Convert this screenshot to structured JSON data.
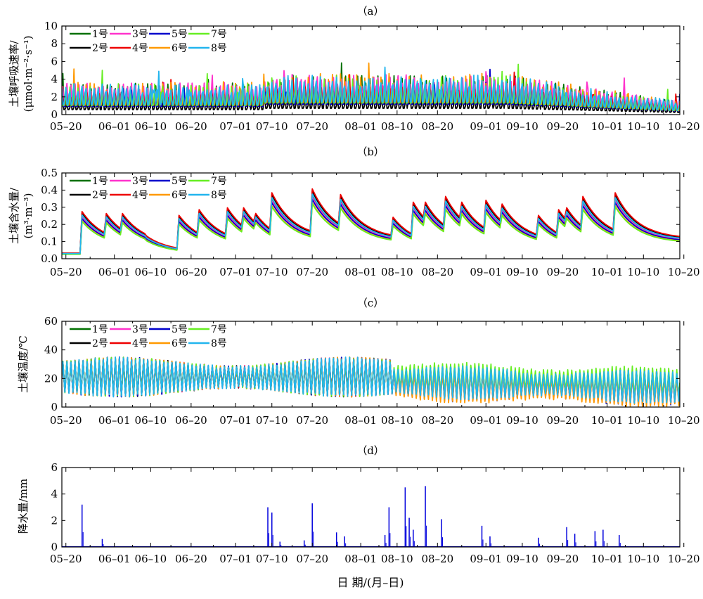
{
  "figure": {
    "xlabel": "日 期/(月–日)",
    "date_ticks": [
      "05–20",
      "06–01",
      "06–10",
      "06–20",
      "07–01",
      "07–10",
      "07–20",
      "08–01",
      "08–10",
      "08–20",
      "09–01",
      "09–10",
      "09–20",
      "10–01",
      "10–10",
      "10–20"
    ]
  },
  "chart_data": [
    {
      "id": "a",
      "tag": "（a）",
      "type": "line",
      "ylabel_lines": [
        "土壤呼吸速率/",
        "(μmol·m⁻²·s⁻¹)"
      ],
      "ylim": [
        0,
        10
      ],
      "yticks": [
        "0",
        "2",
        "4",
        "6",
        "8",
        "10"
      ],
      "xlim": [
        "05-20",
        "10-20"
      ],
      "grid": false,
      "legend": {
        "placement": "top-left",
        "columns": 4,
        "entries": [
          "1号",
          "3号",
          "5号",
          "7号",
          "2号",
          "4号",
          "6号",
          "8号"
        ]
      },
      "series": [
        {
          "name": "1号",
          "color": "#007000",
          "summary": "diurnal oscillation, mostly 0.5–3.5, peak about 4 in early Aug"
        },
        {
          "name": "2号",
          "color": "#000000",
          "summary": "diurnal oscillation, lowest of all, mostly 0.3–2.5"
        },
        {
          "name": "3号",
          "color": "#ff33cc",
          "summary": "diurnal oscillation, peaks about 5.5 in early Jun, about 6.6 on 09-01"
        },
        {
          "name": "4号",
          "color": "#ee0000",
          "summary": "diurnal oscillation, mostly 0.8–4"
        },
        {
          "name": "5号",
          "color": "#0000cc",
          "summary": "diurnal oscillation, mostly 0.8–4"
        },
        {
          "name": "6号",
          "color": "#ff9900",
          "summary": "diurnal oscillation, peak about 6.7 on 08-31"
        },
        {
          "name": "7号",
          "color": "#66ee22",
          "summary": "diurnal oscillation, peaks about 6.4 late Aug"
        },
        {
          "name": "8号",
          "color": "#22b5ee",
          "summary": "diurnal oscillation, mostly 1–4.5, declining to about 0.5 by 10-20"
        }
      ]
    },
    {
      "id": "b",
      "tag": "（b）",
      "type": "line",
      "ylabel_lines": [
        "土壤含水量/",
        "(m³·m⁻³)"
      ],
      "ylim": [
        0,
        0.5
      ],
      "yticks": [
        "0.0",
        "0.1",
        "0.2",
        "0.3",
        "0.4",
        "0.5"
      ],
      "xlim": [
        "05-20",
        "10-20"
      ],
      "grid": false,
      "legend": {
        "placement": "top-left",
        "columns": 4,
        "entries": [
          "1号",
          "3号",
          "5号",
          "7号",
          "2号",
          "4号",
          "6号",
          "8号"
        ]
      },
      "event_dates": [
        "05-24",
        "05-30",
        "06-03",
        "06-09",
        "06-17",
        "06-22",
        "06-29",
        "07-03",
        "07-06",
        "07-10",
        "07-20",
        "07-27",
        "08-09",
        "08-14",
        "08-17",
        "08-22",
        "08-26",
        "09-01",
        "09-05",
        "09-14",
        "09-19",
        "09-21",
        "09-25",
        "10-03"
      ],
      "event_peaks": [
        0.25,
        0.24,
        0.24,
        0.12,
        0.23,
        0.26,
        0.27,
        0.27,
        0.24,
        0.35,
        0.37,
        0.34,
        0.22,
        0.3,
        0.3,
        0.33,
        0.3,
        0.31,
        0.29,
        0.23,
        0.26,
        0.27,
        0.33,
        0.35
      ],
      "series": [
        {
          "name": "1号",
          "color": "#007000"
        },
        {
          "name": "2号",
          "color": "#000000"
        },
        {
          "name": "3号",
          "color": "#ff33cc"
        },
        {
          "name": "4号",
          "color": "#ee0000"
        },
        {
          "name": "5号",
          "color": "#0000cc"
        },
        {
          "name": "6号",
          "color": "#ff9900"
        },
        {
          "name": "7号",
          "color": "#66ee22"
        },
        {
          "name": "8号",
          "color": "#22b5ee"
        }
      ]
    },
    {
      "id": "c",
      "tag": "（c）",
      "type": "line",
      "ylabel_lines": [
        "土壤温度/℃"
      ],
      "ylim": [
        0,
        60
      ],
      "yticks": [
        "0",
        "20",
        "40",
        "60"
      ],
      "xlim": [
        "05-20",
        "10-20"
      ],
      "grid": false,
      "legend": {
        "placement": "top-left",
        "columns": 4,
        "entries": [
          "1号",
          "3号",
          "5号",
          "7号",
          "2号",
          "4号",
          "6号",
          "8号"
        ]
      },
      "series": [
        {
          "name": "1号",
          "color": "#007000"
        },
        {
          "name": "2号",
          "color": "#000000"
        },
        {
          "name": "3号",
          "color": "#ff33cc"
        },
        {
          "name": "4号",
          "color": "#ee0000"
        },
        {
          "name": "5号",
          "color": "#0000cc"
        },
        {
          "name": "6号",
          "color": "#ff9900"
        },
        {
          "name": "7号",
          "color": "#66ee22",
          "summary": "max about 44 on 08-08"
        },
        {
          "name": "8号",
          "color": "#22b5ee",
          "summary": "daily cycle about 10–36 until 08-10, then 8–33"
        }
      ]
    },
    {
      "id": "d",
      "tag": "（d）",
      "type": "bar",
      "ylabel_lines": [
        "降水量/mm"
      ],
      "ylim": [
        0,
        6
      ],
      "yticks": [
        "0",
        "2",
        "4",
        "6"
      ],
      "xlim": [
        "05-20",
        "10-20"
      ],
      "grid": false,
      "color": "#0000dd",
      "x": [
        "05-24",
        "05-29",
        "07-09",
        "07-10",
        "07-12",
        "07-18",
        "07-20",
        "07-26",
        "07-28",
        "08-07",
        "08-08",
        "08-12",
        "08-13",
        "08-14",
        "08-17",
        "08-21",
        "08-31",
        "09-02",
        "09-14",
        "09-21",
        "09-23",
        "09-28",
        "09-30",
        "10-04"
      ],
      "values": [
        3.2,
        0.6,
        3.0,
        2.6,
        0.4,
        0.5,
        3.3,
        1.1,
        0.8,
        0.9,
        3.0,
        4.5,
        2.2,
        1.3,
        4.6,
        2.1,
        1.6,
        0.8,
        0.7,
        1.5,
        1.0,
        1.2,
        1.3,
        0.9
      ]
    }
  ]
}
